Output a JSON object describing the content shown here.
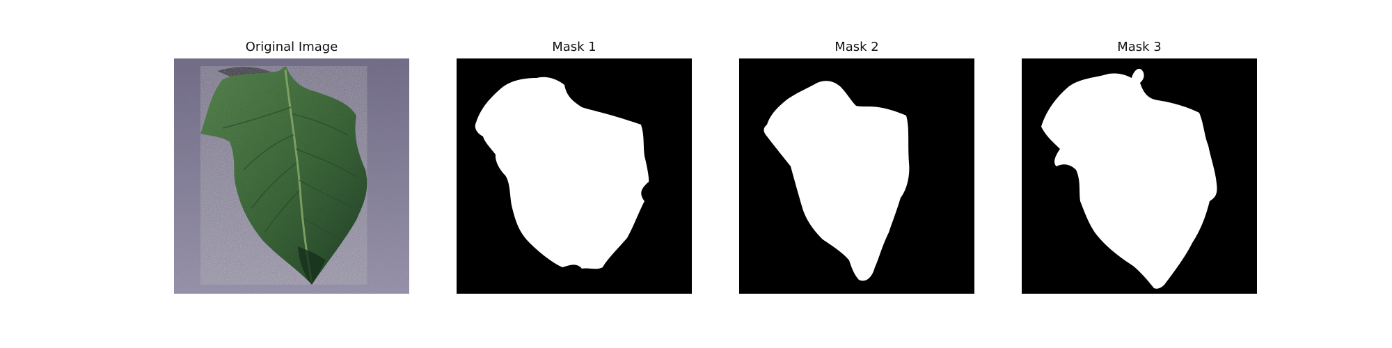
{
  "panels": [
    {
      "title": "Original Image",
      "kind": "photo",
      "content": "green tomato leaf on grey-purple speckled background"
    },
    {
      "title": "Mask 1",
      "kind": "mask"
    },
    {
      "title": "Mask 2",
      "kind": "mask"
    },
    {
      "title": "Mask 3",
      "kind": "mask"
    }
  ],
  "colors": {
    "mask_foreground": "#ffffff",
    "mask_background": "#000000",
    "photo_background": "#8c86a0",
    "leaf_green": "#3d6b3f"
  }
}
